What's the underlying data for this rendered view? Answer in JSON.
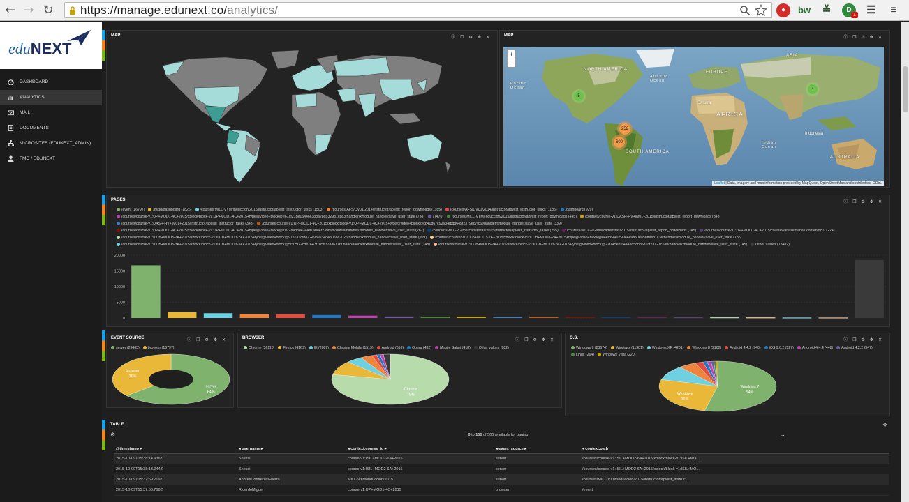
{
  "browser": {
    "url_host": "https://manage.edunext.co/",
    "url_path": "analytics/",
    "ext_badge": "1"
  },
  "sidebar": {
    "logo_text_1": "edu",
    "logo_text_2": "NEXT",
    "items": [
      {
        "label": "DASHBOARD"
      },
      {
        "label": "ANALYTICS"
      },
      {
        "label": "MAIL"
      },
      {
        "label": "DOCUMENTS"
      },
      {
        "label": "MICROSITES (EDUNEXT_ADMIN)"
      },
      {
        "label": "FMO / EDUNEXT"
      }
    ]
  },
  "map1": {
    "title": "MAP"
  },
  "map2": {
    "title": "MAP",
    "zoom_in": "+",
    "zoom_out": "-",
    "clusters": [
      "5",
      "4",
      "252",
      "600"
    ],
    "labels": {
      "north_america": "NORTH AMERICA",
      "south_america": "SOUTH AMERICA",
      "europe": "EUROPE",
      "africa": "AFRICA",
      "asia": "ASIA",
      "australia": "AUSTRALIA",
      "sahara": "Sahara",
      "indonesia": "Indonesia",
      "atlantic": "Atlantic Ocean",
      "pacific": "Pacific Ocean",
      "indian": "Indian Ocean"
    },
    "attribution_link": "Leaflet",
    "attribution_text": "| Data, imagery and map information provided by MapQuest, OpenStreetMap and contributors, ODbL"
  },
  "pages": {
    "title": "PAGES",
    "legend": [
      {
        "label": "/event (16797)",
        "color": "#7eb26d"
      },
      {
        "label": "/mktg/dashboard (1826)",
        "color": "#eab839"
      },
      {
        "label": "/courses/MILL-VYM/Induccion/2015/instructor/api/list_instructor_tasks (1503)",
        "color": "#6ed0e0"
      },
      {
        "label": "/courses/AFS/CV01/2014/instructor/api/list_report_downloads (1185)",
        "color": "#ef843c"
      },
      {
        "label": "/courses/AFS/CV01/2014/instructor/api/list_instructor_tasks (1185)",
        "color": "#e24d42"
      },
      {
        "label": "/dashboard (929)",
        "color": "#1f78c1"
      },
      {
        "label": "/courses/course-v1:UP+MOD1-4C+2015/xblock/block-v1:UP+MOD1-4C+2015+type@video+block@e67af21de15446c388a28d532931cbb3/handler/xmodule_handler/save_user_state (738)",
        "color": "#ba43a9"
      },
      {
        "label": "/ (470)",
        "color": "#705da0"
      },
      {
        "label": "/courses/MILL-VYM/Induccion/2015/instructor/api/list_report_downloads (445)",
        "color": "#508642"
      },
      {
        "label": "/courses/course-v1:DASH-HV+IM01+2015/instructor/api/list_report_downloads (343)",
        "color": "#cca300"
      },
      {
        "label": "/courses/course-v1:DASH-HV+IM01+2015/instructor/api/list_instructor_tasks (343)",
        "color": "#447ebc"
      },
      {
        "label": "/courses/course-v1:UP+MOD1-4C+2015/xblock/block-v1:UP+MOD1-4C+2015+type@video+block@cb40d67c92634fbd8645f2379ec7fc6f/handler/xmodule_handler/save_user_state (339)",
        "color": "#c15c17"
      },
      {
        "label": "/courses/course-v1:UP+MOD1-4C+2015/xblock/block-v1:UP+MOD1-4C+2015+type@video+block@7022a4d3de244a1abd4f23989b70bf6a/handler/xmodule_handler/save_user_state (262)",
        "color": "#890f02"
      },
      {
        "label": "/courses/MILL-PG/mercaderistas/2015/instructor/api/list_instructor_tasks (255)",
        "color": "#0a437c"
      },
      {
        "label": "/courses/MILL-PG/mercaderistas/2015/instructor/api/list_report_downloads (245)",
        "color": "#6d1f62"
      },
      {
        "label": "/courses/course-v1:UP+MOD1-4C+2015/courseware/semana1/contenido1/ (224)",
        "color": "#584477"
      },
      {
        "label": "/courses/course-v1:ILCB+MOD3-2A+2015/xblock/block-v1:ILCB+MOD3-2A+2015+type@video+block@9131a18fd8724989134d48058a7026/handler/xmodule_handler/save_user_state (209)",
        "color": "#b7dbab"
      },
      {
        "label": "/courses/course-v1:ILCB+MOD3-2A+2015/xblock/block-v1:ILCB+MOD3-2A+2015+type@video+block@84efd58e0c9944e9a50ea58ffead1c3e/handler/xmodule_handler/save_user_state (185)",
        "color": "#f4d598"
      },
      {
        "label": "/courses/course-v1:ILCB+MOD3-3A+2015/xblock/block-v1:ILCB+MOD3-3A+2015+type@video+block@5c92922cde7643f785d378361760baec/handler/xmodule_handler/save_user_state (148)",
        "color": "#70dbed"
      },
      {
        "label": "/courses/course-v1:ILCB+MOD3-2A+2015/xblock/block-v1:ILCB+MOD3-2A+2015+type@video+block@22f145ed1f4443858bd5e1cf7a121c18b/handler/xmodule_handler/save_user_state (145)",
        "color": "#f9ba8f"
      },
      {
        "label": "Other values (18482)",
        "color": "#3a3a3a"
      }
    ]
  },
  "event_source": {
    "title": "EVENT SOURCE",
    "legend": [
      {
        "label": "server (29465)",
        "color": "#7eb26d"
      },
      {
        "label": "browser (16797)",
        "color": "#eab839"
      }
    ],
    "slice_labels": [
      {
        "name": "browser",
        "pct": "36%"
      },
      {
        "name": "server",
        "pct": "64%"
      }
    ]
  },
  "browser_panel": {
    "title": "BROWSER",
    "legend": [
      {
        "label": "Chrome (36118)",
        "color": "#b7dbab"
      },
      {
        "label": "Firefox (4189)",
        "color": "#eab839"
      },
      {
        "label": "IE (2087)",
        "color": "#6ed0e0"
      },
      {
        "label": "Chrome Mobile (1519)",
        "color": "#ef843c"
      },
      {
        "label": "Android (616)",
        "color": "#e24d42"
      },
      {
        "label": "Opera (432)",
        "color": "#1f78c1"
      },
      {
        "label": "Mobile Safari (418)",
        "color": "#ba43a9"
      },
      {
        "label": "Other values (882)",
        "color": "#3a3a3a"
      }
    ],
    "slice_labels": [
      {
        "name": "Chrome",
        "pct": "78%"
      }
    ]
  },
  "os_panel": {
    "title": "O.S.",
    "legend": [
      {
        "label": "Windows 7 (23674)",
        "color": "#7eb26d"
      },
      {
        "label": "Windows (11381)",
        "color": "#eab839"
      },
      {
        "label": "Windows XP (4201)",
        "color": "#6ed0e0"
      },
      {
        "label": "Windows 8 (2162)",
        "color": "#ef843c"
      },
      {
        "label": "Android 4.4.2 (940)",
        "color": "#e24d42"
      },
      {
        "label": "iOS 9.0.2 (527)",
        "color": "#1f78c1"
      },
      {
        "label": "Android 4.4.4 (448)",
        "color": "#ba43a9"
      },
      {
        "label": "Android 4.2.2 (347)",
        "color": "#705da0"
      },
      {
        "label": "Linux (264)",
        "color": "#508642"
      },
      {
        "label": "Windows Vista (220)",
        "color": "#cca300"
      }
    ],
    "slice_labels": [
      {
        "name": "Windows 7",
        "pct": "54%"
      },
      {
        "name": "Windows",
        "pct": "26%"
      }
    ]
  },
  "table": {
    "title": "TABLE",
    "paging_from": "0",
    "paging_to": "100",
    "paging_rest": "of 500 available for paging",
    "paging_to_word": "to",
    "columns": [
      "@timestamp",
      "username",
      "context.course_id",
      "event_source",
      "context.path"
    ],
    "rows": [
      [
        "2015-10-09T15:38:14.936Z",
        "Shessi",
        "course-v1:ISIL+MOD2-6A+2015",
        "server",
        "/courses/course-v1:ISIL+MOD2-6A+2015/xblock/block-v1:ISIL+MO..."
      ],
      [
        "2015-10-09T15:38:13.944Z",
        "Shessi",
        "course-v1:ISIL+MOD2-6A+2015",
        "server",
        "/courses/course-v1:ISIL+MOD2-6A+2015/xblock/block-v1:ISIL+MO..."
      ],
      [
        "2015-10-09T15:37:59.209Z",
        "AndresContrerasGuerra",
        "MILL-VYM/Induccion/2015",
        "server",
        "/courses/MILL-VYM/Induccion/2015/instructor/api/list_instruc..."
      ],
      [
        "2015-10-09T15:37:55.716Z",
        "RicardoMiguel",
        "course-v1:UP+MOD1-4C+2015",
        "browser",
        "/event"
      ]
    ]
  },
  "chart_data": [
    {
      "type": "bar",
      "title": "PAGES",
      "categories": [
        "/event",
        "/mktg/dashboard",
        "/courses/MILL-VYM/Induccion/2015/instructor/api/list_instructor_tasks",
        "/courses/AFS/CV01/2014/instructor/api/list_report_downloads",
        "/courses/AFS/CV01/2014/instructor/api/list_instructor_tasks",
        "/dashboard",
        "/courses/course-v1:UP+MOD1-4C+2015/xblock/...e67af21de15446c388a28d532931cbb3/handler/xmodule_handler/save_user_state",
        "/",
        "/courses/MILL-VYM/Induccion/2015/instructor/api/list_report_downloads",
        "/courses/course-v1:DASH-HV+IM01+2015/instructor/api/list_report_downloads",
        "/courses/course-v1:DASH-HV+IM01+2015/instructor/api/list_instructor_tasks",
        "/courses/course-v1:UP+MOD1-4C+2015/xblock/...cb40d67c92634fbd8645f2379ec7fc6f/handler/xmodule_handler/save_user_state",
        "/courses/course-v1:UP+MOD1-4C+2015/xblock/...7022a4d3de244a1abd4f23989b70bf6a/handler/xmodule_handler/save_user_state",
        "/courses/MILL-PG/mercaderistas/2015/instructor/api/list_instructor_tasks",
        "/courses/MILL-PG/mercaderistas/2015/instructor/api/list_report_downloads",
        "/courses/course-v1:UP+MOD1-4C+2015/courseware/semana1/contenido1/",
        "/courses/course-v1:ILCB+MOD3-2A+2015/xblock/...9131a18fd8724989134d48058a7026/handler/xmodule_handler/save_user_state",
        "/courses/course-v1:ILCB+MOD3-2A+2015/xblock/...84efd58e0c9944e9a50ea58ffead1c3e/handler/xmodule_handler/save_user_state",
        "/courses/course-v1:ILCB+MOD3-3A+2015/xblock/...5c92922cde7643f785d378361760baec/handler/xmodule_handler/save_user_state",
        "/courses/course-v1:ILCB+MOD3-2A+2015/xblock/...22f145ed1f4443858bd5e1cf7a121c18b/handler/xmodule_handler/save_user_state",
        "Other values"
      ],
      "values": [
        16797,
        1826,
        1503,
        1185,
        1185,
        929,
        738,
        470,
        445,
        343,
        343,
        339,
        262,
        255,
        245,
        224,
        209,
        185,
        148,
        145,
        18482
      ],
      "colors": [
        "#7eb26d",
        "#eab839",
        "#6ed0e0",
        "#ef843c",
        "#e24d42",
        "#1f78c1",
        "#ba43a9",
        "#705da0",
        "#508642",
        "#cca300",
        "#447ebc",
        "#c15c17",
        "#890f02",
        "#0a437c",
        "#6d1f62",
        "#584477",
        "#b7dbab",
        "#f4d598",
        "#70dbed",
        "#f9ba8f",
        "#3a3a3a"
      ],
      "ylim": [
        0,
        20000
      ],
      "yticks": [
        "0",
        "5000",
        "10000",
        "15000",
        "20000"
      ],
      "grid": true
    },
    {
      "type": "pie",
      "title": "EVENT SOURCE",
      "donut": true,
      "categories": [
        "server",
        "browser"
      ],
      "values": [
        29465,
        16797
      ],
      "colors": [
        "#7eb26d",
        "#eab839"
      ]
    },
    {
      "type": "pie",
      "title": "BROWSER",
      "categories": [
        "Chrome",
        "Firefox",
        "IE",
        "Chrome Mobile",
        "Android",
        "Opera",
        "Mobile Safari",
        "Other values"
      ],
      "values": [
        36118,
        4189,
        2087,
        1519,
        616,
        432,
        418,
        882
      ],
      "colors": [
        "#b7dbab",
        "#eab839",
        "#6ed0e0",
        "#ef843c",
        "#e24d42",
        "#1f78c1",
        "#ba43a9",
        "#3a3a3a"
      ]
    },
    {
      "type": "pie",
      "title": "O.S.",
      "categories": [
        "Windows 7",
        "Windows",
        "Windows XP",
        "Windows 8",
        "Android 4.4.2",
        "iOS 9.0.2",
        "Android 4.4.4",
        "Android 4.2.2",
        "Linux",
        "Windows Vista"
      ],
      "values": [
        23674,
        11381,
        4201,
        2162,
        940,
        527,
        448,
        347,
        264,
        220
      ],
      "colors": [
        "#7eb26d",
        "#eab839",
        "#6ed0e0",
        "#ef843c",
        "#e24d42",
        "#1f78c1",
        "#ba43a9",
        "#705da0",
        "#508642",
        "#cca300"
      ]
    }
  ]
}
